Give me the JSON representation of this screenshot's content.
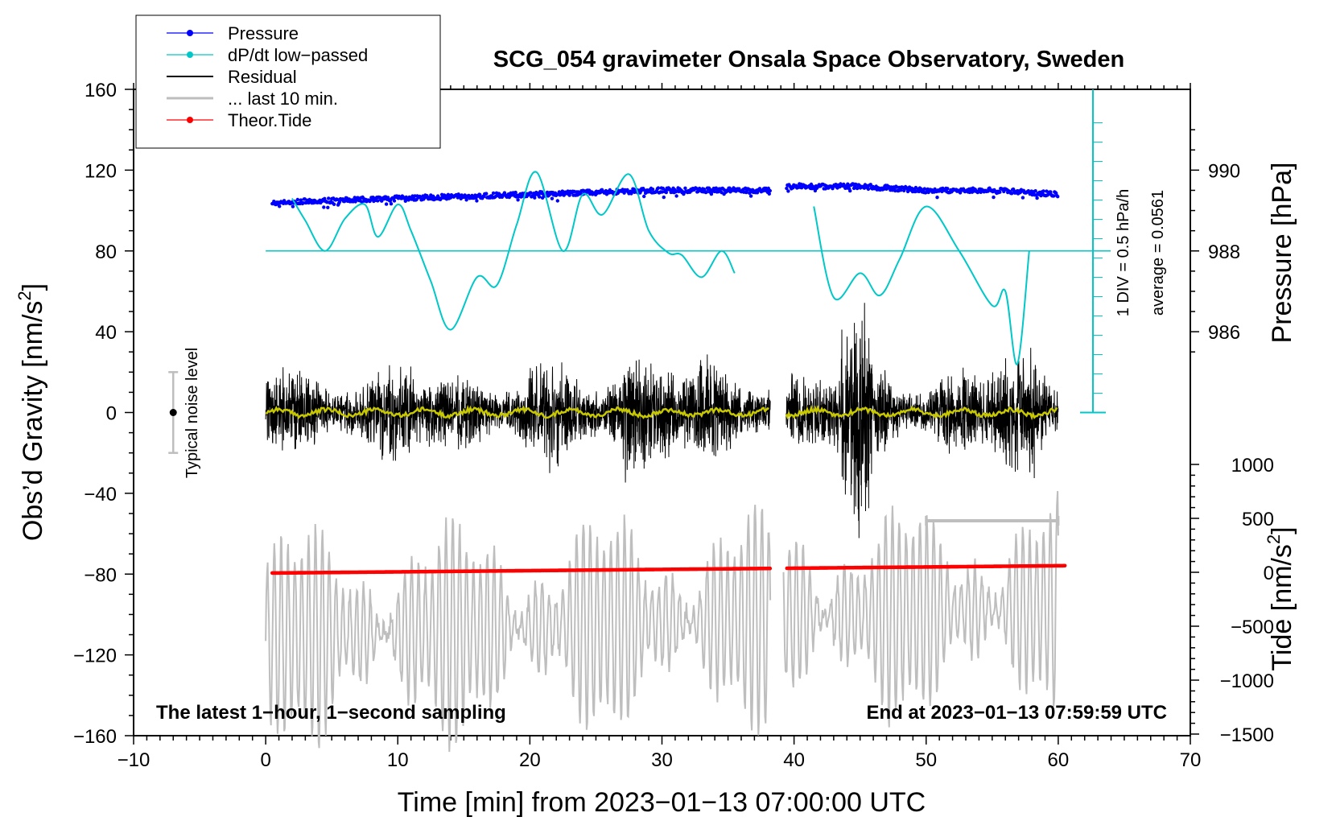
{
  "chart_data": {
    "type": "line",
    "title": "SCG_054 gravimeter Onsala Space Observatory, Sweden",
    "xlabel": "Time [min] from 2023−01−13 07:00:00 UTC",
    "ylabel_left": "Obs’d Gravity [nm/s",
    "ylabel_left_sup": "2",
    "ylabel_left_end": "]",
    "ylabel_right_pressure": "Pressure [hPa]",
    "ylabel_right_tide": "Tide [nm/s",
    "ylabel_right_tide_sup": "2",
    "ylabel_right_tide_end": "]",
    "xlim": [
      -10,
      70
    ],
    "ylim_gravity": [
      -160,
      160
    ],
    "x_ticks": [
      -10,
      0,
      10,
      20,
      30,
      40,
      50,
      60,
      70
    ],
    "x_tick_labels": [
      "−10",
      "0",
      "10",
      "20",
      "30",
      "40",
      "50",
      "60",
      "70"
    ],
    "gravity_ticks": [
      -160,
      -120,
      -80,
      -40,
      0,
      40,
      80,
      120,
      160
    ],
    "gravity_tick_labels": [
      "−160",
      "−120",
      "−80",
      "−40",
      "0",
      "40",
      "80",
      "120",
      "160"
    ],
    "pressure_ticks": [
      986,
      988,
      990
    ],
    "pressure_tick_labels": [
      "986",
      "988",
      "990"
    ],
    "tide_ticks": [
      -1500,
      -1000,
      -500,
      0,
      500,
      1000
    ],
    "tide_tick_labels": [
      "−1500",
      "−1000",
      "−500",
      "0",
      "500",
      "1000"
    ],
    "legend": [
      {
        "label": "Pressure",
        "color": "#0000ff",
        "marker": true
      },
      {
        "label": "dP/dt low−passed",
        "color": "#00c8c8",
        "marker": true
      },
      {
        "label": "Residual",
        "color": "#000000",
        "marker": false
      },
      {
        "label": "... last 10 min.",
        "color": "#bebebe",
        "marker": false
      },
      {
        "label": "Theor.Tide",
        "color": "#ff0000",
        "marker": true
      }
    ],
    "noise_label": "Typical noise level",
    "noise_level": [
      -20,
      20
    ],
    "dpdt_scale_label": "1 DIV = 0.5 hPa/h",
    "dpdt_average_label": "average = 0.0561",
    "note_left": "The latest 1−hour, 1−second sampling",
    "note_right": "End at 2023−01−13 07:59:59 UTC",
    "data_gap_minutes": [
      38.2,
      39.4
    ],
    "series": [
      {
        "name": "Pressure",
        "units": "hPa",
        "color": "#0000ff",
        "x": [
          0.5,
          10,
          20,
          30,
          38,
          39.8,
          45,
          50,
          55,
          60
        ],
        "values": [
          989.2,
          989.3,
          989.4,
          989.5,
          989.5,
          989.6,
          989.6,
          989.5,
          989.5,
          989.4
        ]
      },
      {
        "name": "dP/dt low−passed",
        "units": "nm/s2 plot scale",
        "color": "#00c8c8",
        "x": [
          2,
          3,
          4.5,
          6,
          7.5,
          8.5,
          10,
          11,
          12.5,
          14,
          16,
          17.5,
          19,
          20.5,
          22.5,
          24,
          25.5,
          27.5,
          29,
          30.5,
          31.5,
          33,
          34.5,
          35.5,
          41.5,
          43,
          45,
          46.5,
          48,
          50,
          52.5,
          55,
          56,
          56.9,
          57.8
        ],
        "values": [
          106,
          95,
          80,
          96,
          103,
          87,
          103,
          90,
          65,
          41,
          67,
          63,
          93,
          119,
          80,
          108,
          98,
          118,
          90,
          79,
          78,
          67,
          80,
          69,
          102,
          57,
          69,
          58,
          76,
          102,
          80,
          53,
          60,
          24,
          80
        ]
      },
      {
        "name": "Residual",
        "units": "nm/s2",
        "color": "#000000",
        "x": [
          0,
          10,
          20,
          28,
          30,
          38,
          39.8,
          44.5,
          45,
          50,
          57,
          60
        ],
        "values": [
          0,
          0,
          0,
          0,
          0,
          0,
          0,
          0,
          0,
          0,
          0,
          0
        ]
      },
      {
        "name": "... last 10 min.",
        "units": "nm/s2",
        "color": "#bebebe",
        "x": [
          0,
          60
        ],
        "values": [
          -123,
          -108
        ]
      },
      {
        "name": "Theor.Tide",
        "units": "nm/s2",
        "color": "#ff0000",
        "x": [
          0.5,
          60.5
        ],
        "values": [
          -7,
          61
        ]
      }
    ]
  }
}
